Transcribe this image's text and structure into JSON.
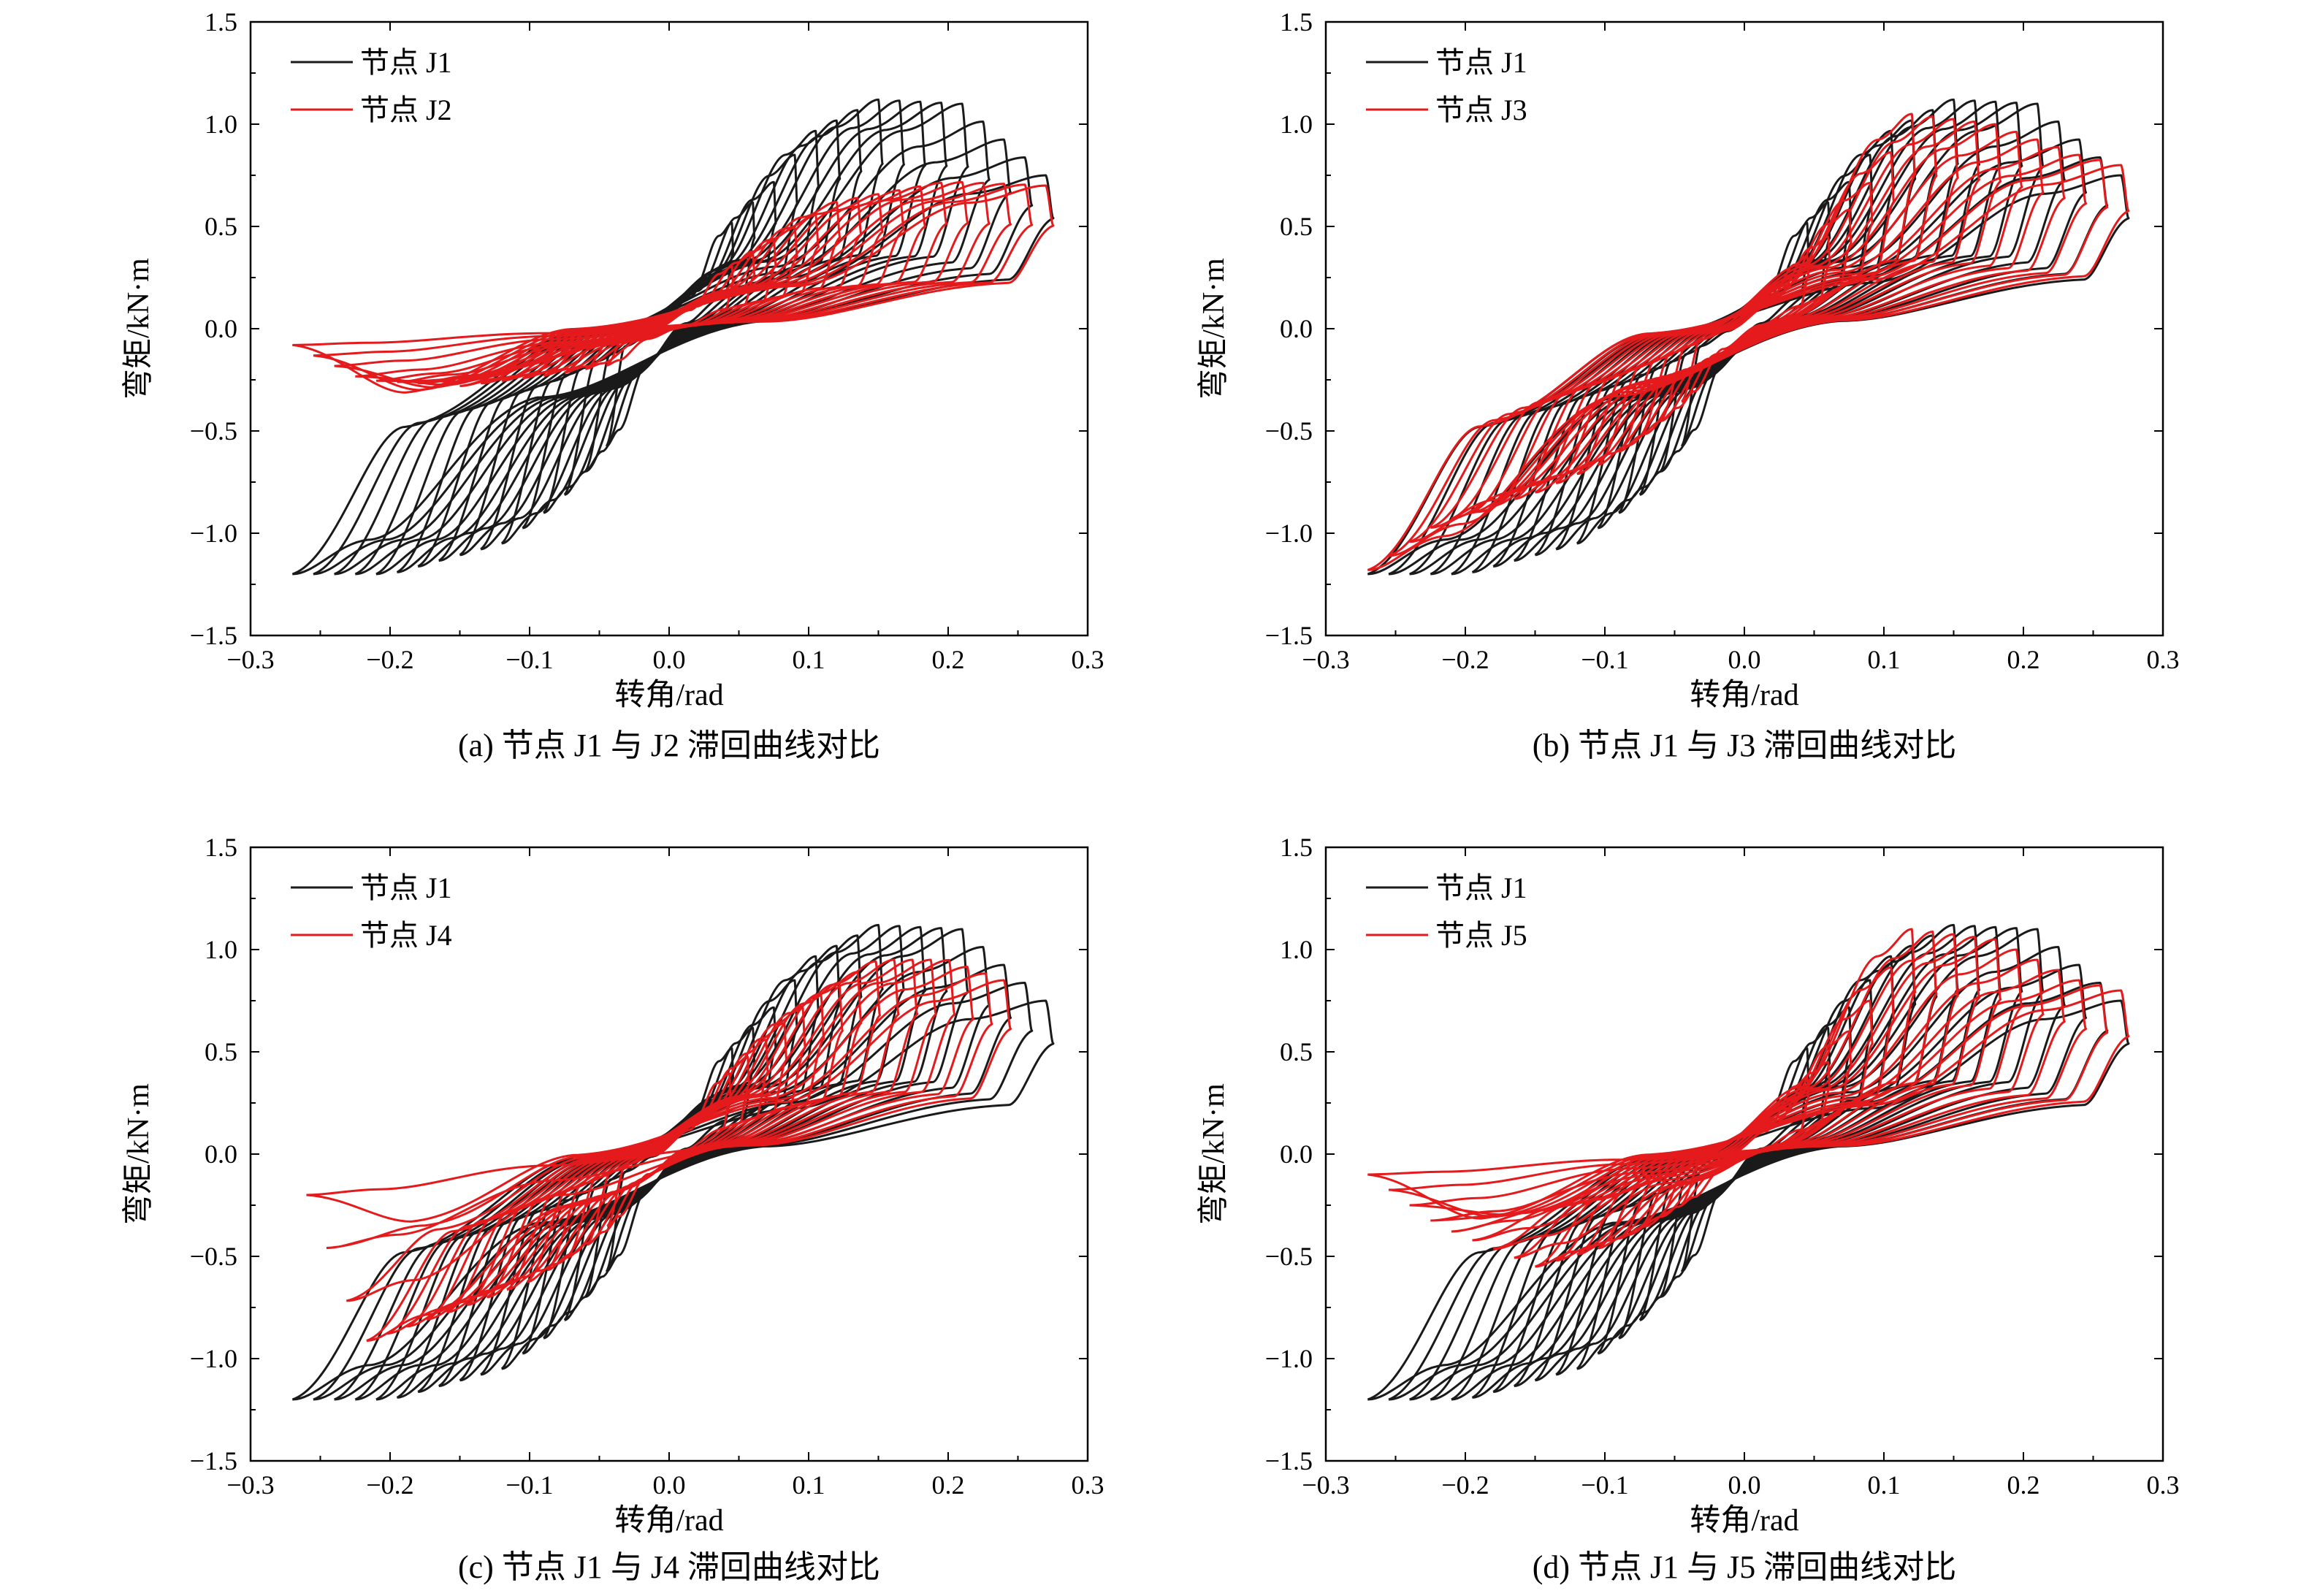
{
  "chart_data": [
    {
      "type": "line",
      "caption": "(a) 节点 J1 与 J2 滞回曲线对比",
      "xlabel": "转角/rad",
      "ylabel": "弯矩/kN·m",
      "xlim": [
        -0.3,
        0.3
      ],
      "ylim": [
        -1.5,
        1.5
      ],
      "xticks": [
        "−0.3",
        "−0.2",
        "−0.1",
        "0.0",
        "0.1",
        "0.2",
        "0.3"
      ],
      "yticks": [
        "1.5",
        "1.0",
        "0.5",
        "0.0",
        "−0.5",
        "−1.0",
        "−1.5"
      ],
      "legend_position": "top-left",
      "grid": false,
      "series": [
        {
          "name": "节点 J1",
          "color": "#1a1a1a",
          "pos_env": [
            [
              0.02,
              0.35
            ],
            [
              0.05,
              0.55
            ],
            [
              0.08,
              0.75
            ],
            [
              0.1,
              0.95
            ],
            [
              0.15,
              1.12
            ],
            [
              0.21,
              1.1
            ],
            [
              0.27,
              0.75
            ]
          ],
          "neg_env": [
            [
              -0.02,
              -0.35
            ],
            [
              -0.05,
              -0.62
            ],
            [
              -0.08,
              -0.85
            ],
            [
              -0.12,
              -1.05
            ],
            [
              -0.2,
              -1.2
            ],
            [
              -0.27,
              -1.2
            ]
          ]
        },
        {
          "name": "节点 J2",
          "color": "#e41a1c",
          "pos_env": [
            [
              0.02,
              0.2
            ],
            [
              0.08,
              0.45
            ],
            [
              0.12,
              0.62
            ],
            [
              0.2,
              0.72
            ],
            [
              0.27,
              0.7
            ]
          ],
          "neg_env": [
            [
              -0.02,
              -0.15
            ],
            [
              -0.08,
              -0.22
            ],
            [
              -0.15,
              -0.28
            ],
            [
              -0.22,
              -0.25
            ],
            [
              -0.27,
              -0.08
            ]
          ]
        }
      ]
    },
    {
      "type": "line",
      "caption": "(b) 节点 J1 与 J3 滞回曲线对比",
      "xlabel": "转角/rad",
      "ylabel": "弯矩/kN·m",
      "xlim": [
        -0.3,
        0.3
      ],
      "ylim": [
        -1.5,
        1.5
      ],
      "xticks": [
        "−0.3",
        "−0.2",
        "−0.1",
        "0.0",
        "0.1",
        "0.2",
        "0.3"
      ],
      "yticks": [
        "1.5",
        "1.0",
        "0.5",
        "0.0",
        "−0.5",
        "−1.0",
        "−1.5"
      ],
      "legend_position": "top-left",
      "grid": false,
      "series": [
        {
          "name": "节点 J1",
          "color": "#1a1a1a",
          "pos_env": [
            [
              0.02,
              0.35
            ],
            [
              0.05,
              0.55
            ],
            [
              0.08,
              0.75
            ],
            [
              0.1,
              0.95
            ],
            [
              0.15,
              1.12
            ],
            [
              0.21,
              1.1
            ],
            [
              0.27,
              0.75
            ]
          ],
          "neg_env": [
            [
              -0.02,
              -0.35
            ],
            [
              -0.05,
              -0.62
            ],
            [
              -0.08,
              -0.85
            ],
            [
              -0.12,
              -1.05
            ],
            [
              -0.2,
              -1.2
            ],
            [
              -0.27,
              -1.2
            ]
          ]
        },
        {
          "name": "节点 J3",
          "color": "#e41a1c",
          "pos_env": [
            [
              0.02,
              0.2
            ],
            [
              0.06,
              0.45
            ],
            [
              0.1,
              0.8
            ],
            [
              0.12,
              1.05
            ],
            [
              0.18,
              1.0
            ],
            [
              0.24,
              0.85
            ],
            [
              0.27,
              0.8
            ]
          ],
          "neg_env": [
            [
              -0.02,
              -0.2
            ],
            [
              -0.06,
              -0.45
            ],
            [
              -0.1,
              -0.65
            ],
            [
              -0.15,
              -0.8
            ],
            [
              -0.22,
              -0.95
            ],
            [
              -0.27,
              -1.18
            ]
          ]
        }
      ]
    },
    {
      "type": "line",
      "caption": "(c) 节点 J1 与 J4 滞回曲线对比",
      "xlabel": "转角/rad",
      "ylabel": "弯矩/kN·m",
      "xlim": [
        -0.3,
        0.3
      ],
      "ylim": [
        -1.5,
        1.5
      ],
      "xticks": [
        "−0.3",
        "−0.2",
        "−0.1",
        "0.0",
        "0.1",
        "0.2",
        "0.3"
      ],
      "yticks": [
        "1.5",
        "1.0",
        "0.5",
        "0.0",
        "−0.5",
        "−1.0",
        "−1.5"
      ],
      "legend_position": "top-left",
      "grid": false,
      "series": [
        {
          "name": "节点 J1",
          "color": "#1a1a1a",
          "pos_env": [
            [
              0.02,
              0.35
            ],
            [
              0.05,
              0.55
            ],
            [
              0.08,
              0.75
            ],
            [
              0.1,
              0.95
            ],
            [
              0.15,
              1.12
            ],
            [
              0.21,
              1.1
            ],
            [
              0.27,
              0.75
            ]
          ],
          "neg_env": [
            [
              -0.02,
              -0.35
            ],
            [
              -0.05,
              -0.62
            ],
            [
              -0.08,
              -0.85
            ],
            [
              -0.12,
              -1.05
            ],
            [
              -0.2,
              -1.2
            ],
            [
              -0.27,
              -1.2
            ]
          ]
        },
        {
          "name": "节点 J4",
          "color": "#e41a1c",
          "pos_env": [
            [
              0.02,
              0.25
            ],
            [
              0.06,
              0.5
            ],
            [
              0.1,
              0.75
            ],
            [
              0.15,
              0.95
            ],
            [
              0.2,
              0.95
            ],
            [
              0.24,
              0.85
            ]
          ],
          "neg_env": [
            [
              -0.02,
              -0.2
            ],
            [
              -0.06,
              -0.45
            ],
            [
              -0.1,
              -0.62
            ],
            [
              -0.15,
              -0.75
            ],
            [
              -0.22,
              -0.92
            ],
            [
              -0.26,
              -0.2
            ]
          ]
        }
      ]
    },
    {
      "type": "line",
      "caption": "(d) 节点 J1 与 J5 滞回曲线对比",
      "xlabel": "转角/rad",
      "ylabel": "弯矩/kN·m",
      "xlim": [
        -0.3,
        0.3
      ],
      "ylim": [
        -1.5,
        1.5
      ],
      "xticks": [
        "−0.3",
        "−0.2",
        "−0.1",
        "0.0",
        "0.1",
        "0.2",
        "0.3"
      ],
      "yticks": [
        "1.5",
        "1.0",
        "0.5",
        "0.0",
        "−0.5",
        "−1.0",
        "−1.5"
      ],
      "legend_position": "top-left",
      "grid": false,
      "series": [
        {
          "name": "节点 J1",
          "color": "#1a1a1a",
          "pos_env": [
            [
              0.02,
              0.35
            ],
            [
              0.05,
              0.55
            ],
            [
              0.08,
              0.75
            ],
            [
              0.1,
              0.95
            ],
            [
              0.15,
              1.12
            ],
            [
              0.21,
              1.1
            ],
            [
              0.27,
              0.75
            ]
          ],
          "neg_env": [
            [
              -0.02,
              -0.35
            ],
            [
              -0.05,
              -0.62
            ],
            [
              -0.08,
              -0.85
            ],
            [
              -0.12,
              -1.05
            ],
            [
              -0.2,
              -1.2
            ],
            [
              -0.27,
              -1.2
            ]
          ]
        },
        {
          "name": "节点 J5",
          "color": "#e41a1c",
          "pos_env": [
            [
              0.02,
              0.25
            ],
            [
              0.06,
              0.45
            ],
            [
              0.1,
              0.85
            ],
            [
              0.12,
              1.1
            ],
            [
              0.18,
              1.05
            ],
            [
              0.24,
              0.85
            ],
            [
              0.27,
              0.8
            ]
          ],
          "neg_env": [
            [
              -0.02,
              -0.15
            ],
            [
              -0.06,
              -0.3
            ],
            [
              -0.1,
              -0.45
            ],
            [
              -0.15,
              -0.55
            ],
            [
              -0.22,
              -0.35
            ],
            [
              -0.27,
              -0.1
            ]
          ]
        }
      ]
    }
  ]
}
